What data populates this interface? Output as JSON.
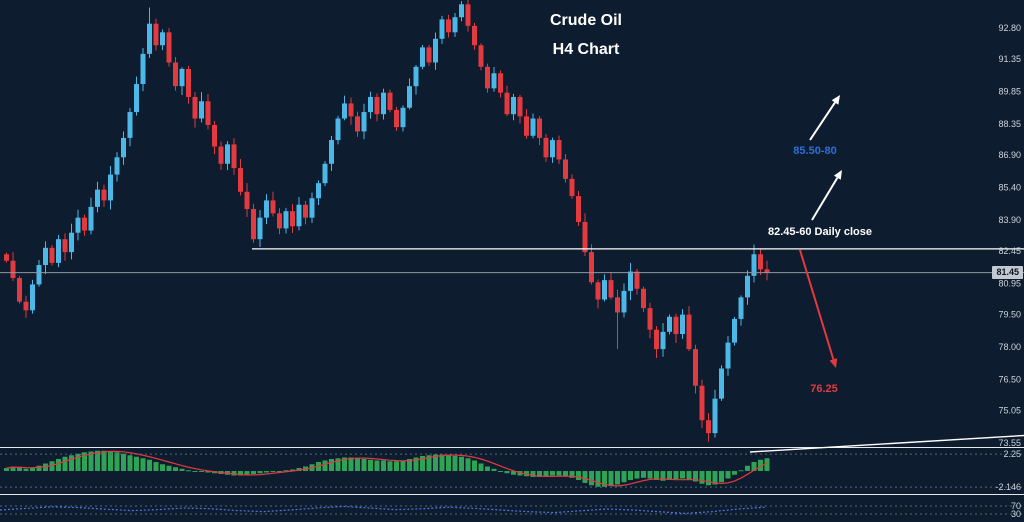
{
  "chart": {
    "title_line1": "Crude Oil",
    "title_line2": "H4 Chart",
    "current_price": "81.45",
    "annotations": {
      "upside_target": "85.50-80",
      "daily_close": "82.45-60 Daily close",
      "downside_target": "76.25"
    },
    "colors": {
      "background": "#0d1c2e",
      "bull_candle": "#4cb8e8",
      "bear_candle": "#e23a3f",
      "histogram": "#2fa355",
      "signal_line": "#e23a3f",
      "oscillator_line": "#4a79e0",
      "upside_label": "#2e6fd6",
      "downside_label": "#e23a3f",
      "level_line": "#ffffff",
      "price_line": "#8f98a2",
      "axis_text": "#cdd5de",
      "separator": "#e4e8ec",
      "dotted_level": "#5a6673"
    },
    "axis": {
      "main": [
        "92.80",
        "91.35",
        "89.85",
        "88.35",
        "86.90",
        "85.40",
        "83.90",
        "82.45",
        "80.95",
        "79.50",
        "78.00",
        "76.50",
        "75.05",
        "73.55"
      ],
      "indicator": [
        "2.25",
        "-2.146"
      ],
      "lower": [
        "70",
        "30"
      ]
    }
  },
  "chart_data": {
    "type": "candlestick",
    "symbol": "Crude Oil",
    "timeframe": "H4",
    "first_open": 82.3,
    "closes": [
      82.0,
      81.2,
      80.1,
      79.7,
      80.9,
      81.8,
      82.6,
      81.9,
      83.0,
      82.4,
      83.3,
      84.0,
      83.4,
      84.5,
      85.3,
      84.8,
      86.0,
      86.8,
      87.7,
      88.9,
      90.2,
      91.6,
      93.0,
      92.0,
      92.6,
      91.2,
      90.1,
      90.9,
      89.6,
      88.6,
      89.4,
      88.3,
      87.3,
      86.5,
      87.4,
      86.3,
      85.2,
      84.4,
      83.0,
      84.0,
      84.8,
      84.2,
      83.5,
      84.3,
      83.6,
      84.6,
      84.0,
      84.9,
      85.6,
      86.5,
      87.6,
      88.6,
      89.3,
      88.7,
      88.0,
      88.9,
      89.6,
      88.8,
      89.8,
      89.0,
      88.2,
      89.1,
      90.1,
      91.0,
      91.9,
      91.2,
      92.3,
      93.2,
      92.6,
      93.3,
      93.9,
      92.9,
      92.0,
      91.0,
      90.0,
      90.7,
      89.8,
      88.8,
      89.6,
      88.7,
      87.8,
      88.6,
      87.7,
      86.8,
      87.6,
      86.7,
      85.8,
      85.0,
      83.8,
      82.4,
      81.0,
      80.2,
      81.1,
      80.3,
      79.6,
      80.6,
      81.5,
      80.7,
      79.8,
      78.8,
      77.9,
      78.7,
      79.4,
      78.6,
      79.5,
      77.9,
      76.2,
      74.6,
      74.0,
      75.6,
      77.0,
      78.2,
      79.3,
      80.3,
      81.3,
      82.3,
      81.6,
      81.45
    ],
    "wick_overrides": {
      "3": {
        "low": 79.35
      },
      "22": {
        "high": 93.75
      },
      "70": {
        "high": 94.05
      },
      "94": {
        "low": 77.9
      },
      "108": {
        "low": 73.6
      },
      "115": {
        "high": 82.75
      }
    },
    "daily_close_level": 82.55,
    "current_price_level": 81.45,
    "downside_target_level": 76.25,
    "upside_target_zone": [
      85.5,
      85.8
    ],
    "y_axis_range": [
      73.0,
      94.2
    ],
    "indicator_histogram": [
      0.4,
      0.6,
      0.5,
      0.3,
      0.4,
      0.7,
      1.0,
      1.3,
      1.6,
      1.9,
      2.1,
      2.3,
      2.5,
      2.6,
      2.7,
      2.7,
      2.6,
      2.5,
      2.3,
      2.1,
      1.9,
      1.7,
      1.5,
      1.2,
      0.9,
      0.7,
      0.5,
      0.3,
      0.1,
      0.0,
      -0.1,
      -0.2,
      -0.3,
      -0.4,
      -0.5,
      -0.6,
      -0.6,
      -0.5,
      -0.4,
      -0.3,
      -0.2,
      -0.1,
      0.0,
      0.1,
      0.2,
      0.4,
      0.6,
      0.9,
      1.2,
      1.4,
      1.6,
      1.7,
      1.8,
      1.8,
      1.7,
      1.6,
      1.5,
      1.4,
      1.4,
      1.3,
      1.3,
      1.4,
      1.6,
      1.8,
      2.0,
      2.1,
      2.2,
      2.2,
      2.1,
      2.0,
      1.9,
      1.7,
      1.4,
      1.0,
      0.6,
      0.3,
      0.0,
      -0.3,
      -0.5,
      -0.6,
      -0.7,
      -0.8,
      -0.8,
      -0.7,
      -0.6,
      -0.6,
      -0.7,
      -0.9,
      -1.2,
      -1.6,
      -1.9,
      -2.1,
      -2.1,
      -2.0,
      -1.8,
      -1.5,
      -1.2,
      -1.0,
      -0.9,
      -1.0,
      -1.2,
      -1.3,
      -1.2,
      -1.1,
      -1.0,
      -1.1,
      -1.4,
      -1.7,
      -1.9,
      -1.8,
      -1.5,
      -1.0,
      -0.5,
      0.1,
      0.7,
      1.2,
      1.5,
      1.7
    ],
    "oscillator": [
      0.5,
      0.58,
      0.66,
      0.62,
      0.54,
      0.47,
      0.52,
      0.6,
      0.56,
      0.47,
      0.42,
      0.5,
      0.6,
      0.68,
      0.6,
      0.52,
      0.56,
      0.64,
      0.58,
      0.5,
      0.42,
      0.37,
      0.46,
      0.55,
      0.5,
      0.41,
      0.33,
      0.42,
      0.55,
      0.64
    ]
  }
}
